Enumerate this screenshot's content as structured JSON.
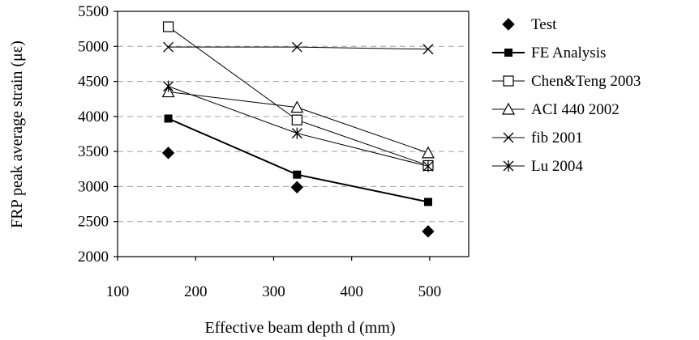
{
  "chart_data": {
    "type": "line",
    "title": "",
    "xlabel": "Effective beam depth d (mm)",
    "ylabel": "FRP peak average strain (με)",
    "xlim": [
      100,
      550
    ],
    "ylim": [
      2000,
      5500
    ],
    "x_ticks": [
      "100",
      "200",
      "300",
      "400",
      "500"
    ],
    "y_ticks": [
      "2000",
      "2500",
      "3000",
      "3500",
      "4000",
      "4500",
      "5000",
      "5500"
    ],
    "x_tick_values": [
      100,
      200,
      300,
      400,
      500
    ],
    "y_tick_values": [
      2000,
      2500,
      3000,
      3500,
      4000,
      4500,
      5000,
      5500
    ],
    "grid": "horizontal dashed",
    "legend_position": "right",
    "series": [
      {
        "name": "Test",
        "marker": "diamond-filled",
        "line": false,
        "x": [
          165,
          330,
          498
        ],
        "y": [
          3480,
          2990,
          2360
        ]
      },
      {
        "name": "FE Analysis",
        "marker": "square-filled",
        "line": true,
        "line_width": 2,
        "x": [
          165,
          330,
          498
        ],
        "y": [
          3970,
          3170,
          2780
        ]
      },
      {
        "name": "Chen&Teng 2003",
        "marker": "square-open",
        "line": true,
        "line_width": 1,
        "x": [
          165,
          330,
          498
        ],
        "y": [
          5280,
          3950,
          3300
        ]
      },
      {
        "name": "ACI 440 2002",
        "marker": "triangle-open",
        "line": true,
        "line_width": 1,
        "x": [
          165,
          330,
          498
        ],
        "y": [
          4350,
          4130,
          3480
        ]
      },
      {
        "name": "fib 2001",
        "marker": "x",
        "line": true,
        "line_width": 1,
        "x": [
          165,
          330,
          498
        ],
        "y": [
          4990,
          4990,
          4960
        ]
      },
      {
        "name": "Lu 2004",
        "marker": "asterisk",
        "line": true,
        "line_width": 1,
        "x": [
          165,
          330,
          498
        ],
        "y": [
          4430,
          3760,
          3290
        ]
      }
    ]
  }
}
